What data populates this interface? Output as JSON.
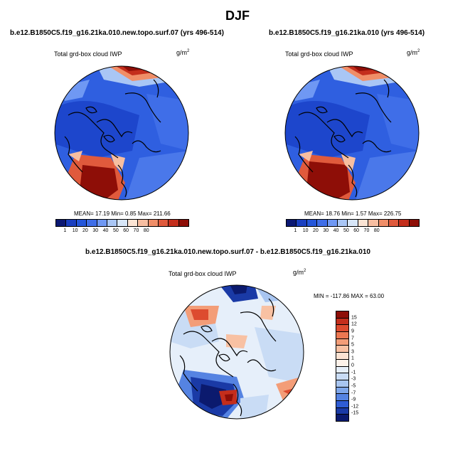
{
  "season": "DJF",
  "panels": [
    {
      "title": "b.e12.B1850C5.f19_g16.21ka.010.new.topo.surf.07 (yrs 496-514)",
      "variable": "Total grd-box cloud IWP",
      "units_base": "g/m",
      "units_exp": "2",
      "stats": "MEAN=  17.19  Min=   0.85  Max= 211.66"
    },
    {
      "title": "b.e12.B1850C5.f19_g16.21ka.010 (yrs 496-514)",
      "variable": "Total grd-box cloud IWP",
      "units_base": "g/m",
      "units_exp": "2",
      "stats": "MEAN=  18.76  Min=   1.57  Max= 226.75"
    }
  ],
  "diff_panel": {
    "title": "b.e12.B1850C5.f19_g16.21ka.010.new.topo.surf.07 - b.e12.B1850C5.f19_g16.21ka.010",
    "variable": "Total grd-box cloud IWP",
    "units_base": "g/m",
    "units_exp": "2",
    "stats": "MIN = -117.86 MAX =  63.00"
  },
  "colorbar_abs": {
    "labels": [
      "1",
      "10",
      "20",
      "30",
      "40",
      "50",
      "60",
      "70",
      "80"
    ],
    "colors": [
      "#0b1873",
      "#1a3fc0",
      "#2456da",
      "#3f6ee8",
      "#6f98f3",
      "#a9c6f5",
      "#d7e6f8",
      "#fbe4d4",
      "#f7bea1",
      "#f08e68",
      "#e05a3c",
      "#c42e1c",
      "#8e0e07"
    ]
  },
  "colorbar_diff": {
    "labels": [
      "15",
      "12",
      "9",
      "7",
      "5",
      "3",
      "1",
      "0",
      "-1",
      "-3",
      "-5",
      "-7",
      "-9",
      "-12",
      "-15"
    ],
    "colors": [
      "#8e0e07",
      "#c42e1c",
      "#dd4b2f",
      "#ec7751",
      "#f39d78",
      "#f8c1a3",
      "#fbe2d2",
      "#fdf2ea",
      "#e6effa",
      "#c9dcf5",
      "#a8c5f0",
      "#7ea6ea",
      "#5583e2",
      "#2f5cd4",
      "#1a3aa6",
      "#0b1a6e"
    ]
  }
}
